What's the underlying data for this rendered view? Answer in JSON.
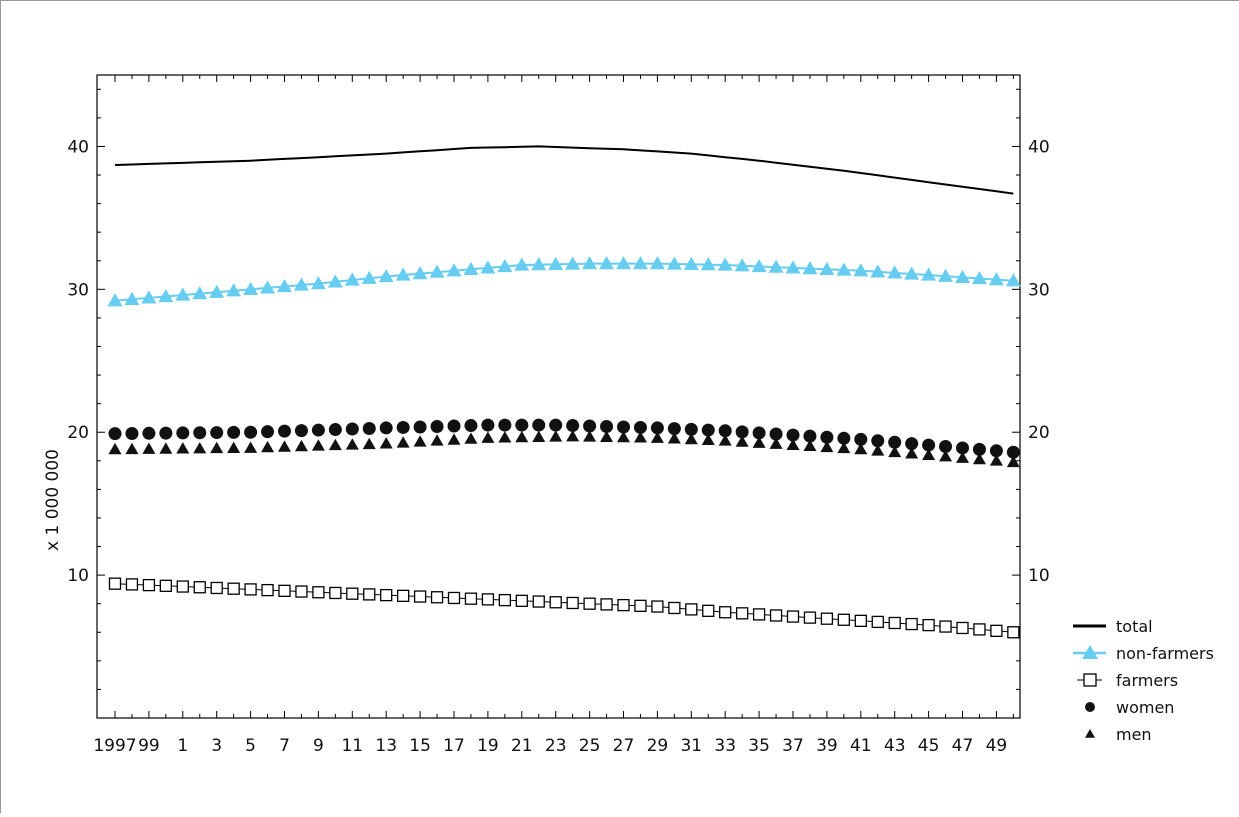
{
  "chart_data": {
    "type": "line",
    "title": "",
    "xlabel": "",
    "ylabel": "x 1 000 000",
    "years": [
      1997,
      1998,
      1999,
      2000,
      2001,
      2002,
      2003,
      2004,
      2005,
      2006,
      2007,
      2008,
      2009,
      2010,
      2011,
      2012,
      2013,
      2014,
      2015,
      2016,
      2017,
      2018,
      2019,
      2020,
      2021,
      2022,
      2023,
      2024,
      2025,
      2026,
      2027,
      2028,
      2029,
      2030,
      2031,
      2032,
      2033,
      2034,
      2035,
      2036,
      2037,
      2038,
      2039,
      2040,
      2041,
      2042,
      2043,
      2044,
      2045,
      2046,
      2047,
      2048,
      2049,
      2050
    ],
    "x_tick_labels": [
      "1997",
      "99",
      "1",
      "3",
      "5",
      "7",
      "9",
      "11",
      "13",
      "15",
      "17",
      "19",
      "21",
      "23",
      "25",
      "27",
      "29",
      "31",
      "33",
      "35",
      "37",
      "39",
      "41",
      "43",
      "45",
      "47",
      "49"
    ],
    "ylim": [
      0,
      45
    ],
    "y_ticks": [
      10,
      20,
      30,
      40
    ],
    "y_tick_labels": [
      "10",
      "20",
      "30",
      "40"
    ],
    "grid": false,
    "legend_position": "bottom-right, outside plot",
    "legend": [
      {
        "key": "total",
        "label": "total"
      },
      {
        "key": "nonfarmers",
        "label": "non-farmers"
      },
      {
        "key": "farmers",
        "label": "farmers"
      },
      {
        "key": "women",
        "label": "women"
      },
      {
        "key": "men",
        "label": "men"
      }
    ],
    "series": [
      {
        "key": "total",
        "name": "total",
        "color": "#000000",
        "marker": "none",
        "anchors": [
          [
            1997,
            38.7
          ],
          [
            2005,
            39.0
          ],
          [
            2013,
            39.5
          ],
          [
            2018,
            39.9
          ],
          [
            2022,
            40.0
          ],
          [
            2027,
            39.8
          ],
          [
            2031,
            39.5
          ],
          [
            2035,
            39.0
          ],
          [
            2040,
            38.3
          ],
          [
            2045,
            37.5
          ],
          [
            2050,
            36.7
          ]
        ]
      },
      {
        "key": "nonfarmers",
        "name": "non-farmers",
        "color": "#66ccf0",
        "marker": "triangle",
        "anchors": [
          [
            1997,
            29.2
          ],
          [
            2001,
            29.6
          ],
          [
            2005,
            30.0
          ],
          [
            2009,
            30.4
          ],
          [
            2013,
            30.9
          ],
          [
            2017,
            31.3
          ],
          [
            2021,
            31.7
          ],
          [
            2025,
            31.8
          ],
          [
            2029,
            31.8
          ],
          [
            2033,
            31.7
          ],
          [
            2037,
            31.5
          ],
          [
            2041,
            31.3
          ],
          [
            2045,
            31.0
          ],
          [
            2050,
            30.6
          ]
        ]
      },
      {
        "key": "women",
        "name": "women",
        "color": "#111111",
        "marker": "circle",
        "anchors": [
          [
            1997,
            19.9
          ],
          [
            2005,
            20.0
          ],
          [
            2013,
            20.3
          ],
          [
            2019,
            20.5
          ],
          [
            2023,
            20.5
          ],
          [
            2029,
            20.3
          ],
          [
            2033,
            20.1
          ],
          [
            2037,
            19.8
          ],
          [
            2041,
            19.5
          ],
          [
            2045,
            19.1
          ],
          [
            2050,
            18.6
          ]
        ]
      },
      {
        "key": "men",
        "name": "men",
        "color": "#111111",
        "marker": "triangle",
        "anchors": [
          [
            1997,
            18.8
          ],
          [
            2005,
            18.9
          ],
          [
            2013,
            19.2
          ],
          [
            2019,
            19.6
          ],
          [
            2024,
            19.7
          ],
          [
            2029,
            19.6
          ],
          [
            2033,
            19.4
          ],
          [
            2037,
            19.1
          ],
          [
            2041,
            18.8
          ],
          [
            2045,
            18.4
          ],
          [
            2050,
            17.9
          ]
        ]
      },
      {
        "key": "farmers",
        "name": "farmers",
        "color": "#000000",
        "marker": "square",
        "anchors": [
          [
            1997,
            9.4
          ],
          [
            2001,
            9.2
          ],
          [
            2005,
            9.0
          ],
          [
            2009,
            8.8
          ],
          [
            2013,
            8.6
          ],
          [
            2017,
            8.4
          ],
          [
            2021,
            8.2
          ],
          [
            2025,
            8.0
          ],
          [
            2029,
            7.8
          ],
          [
            2033,
            7.4
          ],
          [
            2037,
            7.1
          ],
          [
            2041,
            6.8
          ],
          [
            2045,
            6.5
          ],
          [
            2050,
            6.0
          ]
        ]
      }
    ]
  }
}
